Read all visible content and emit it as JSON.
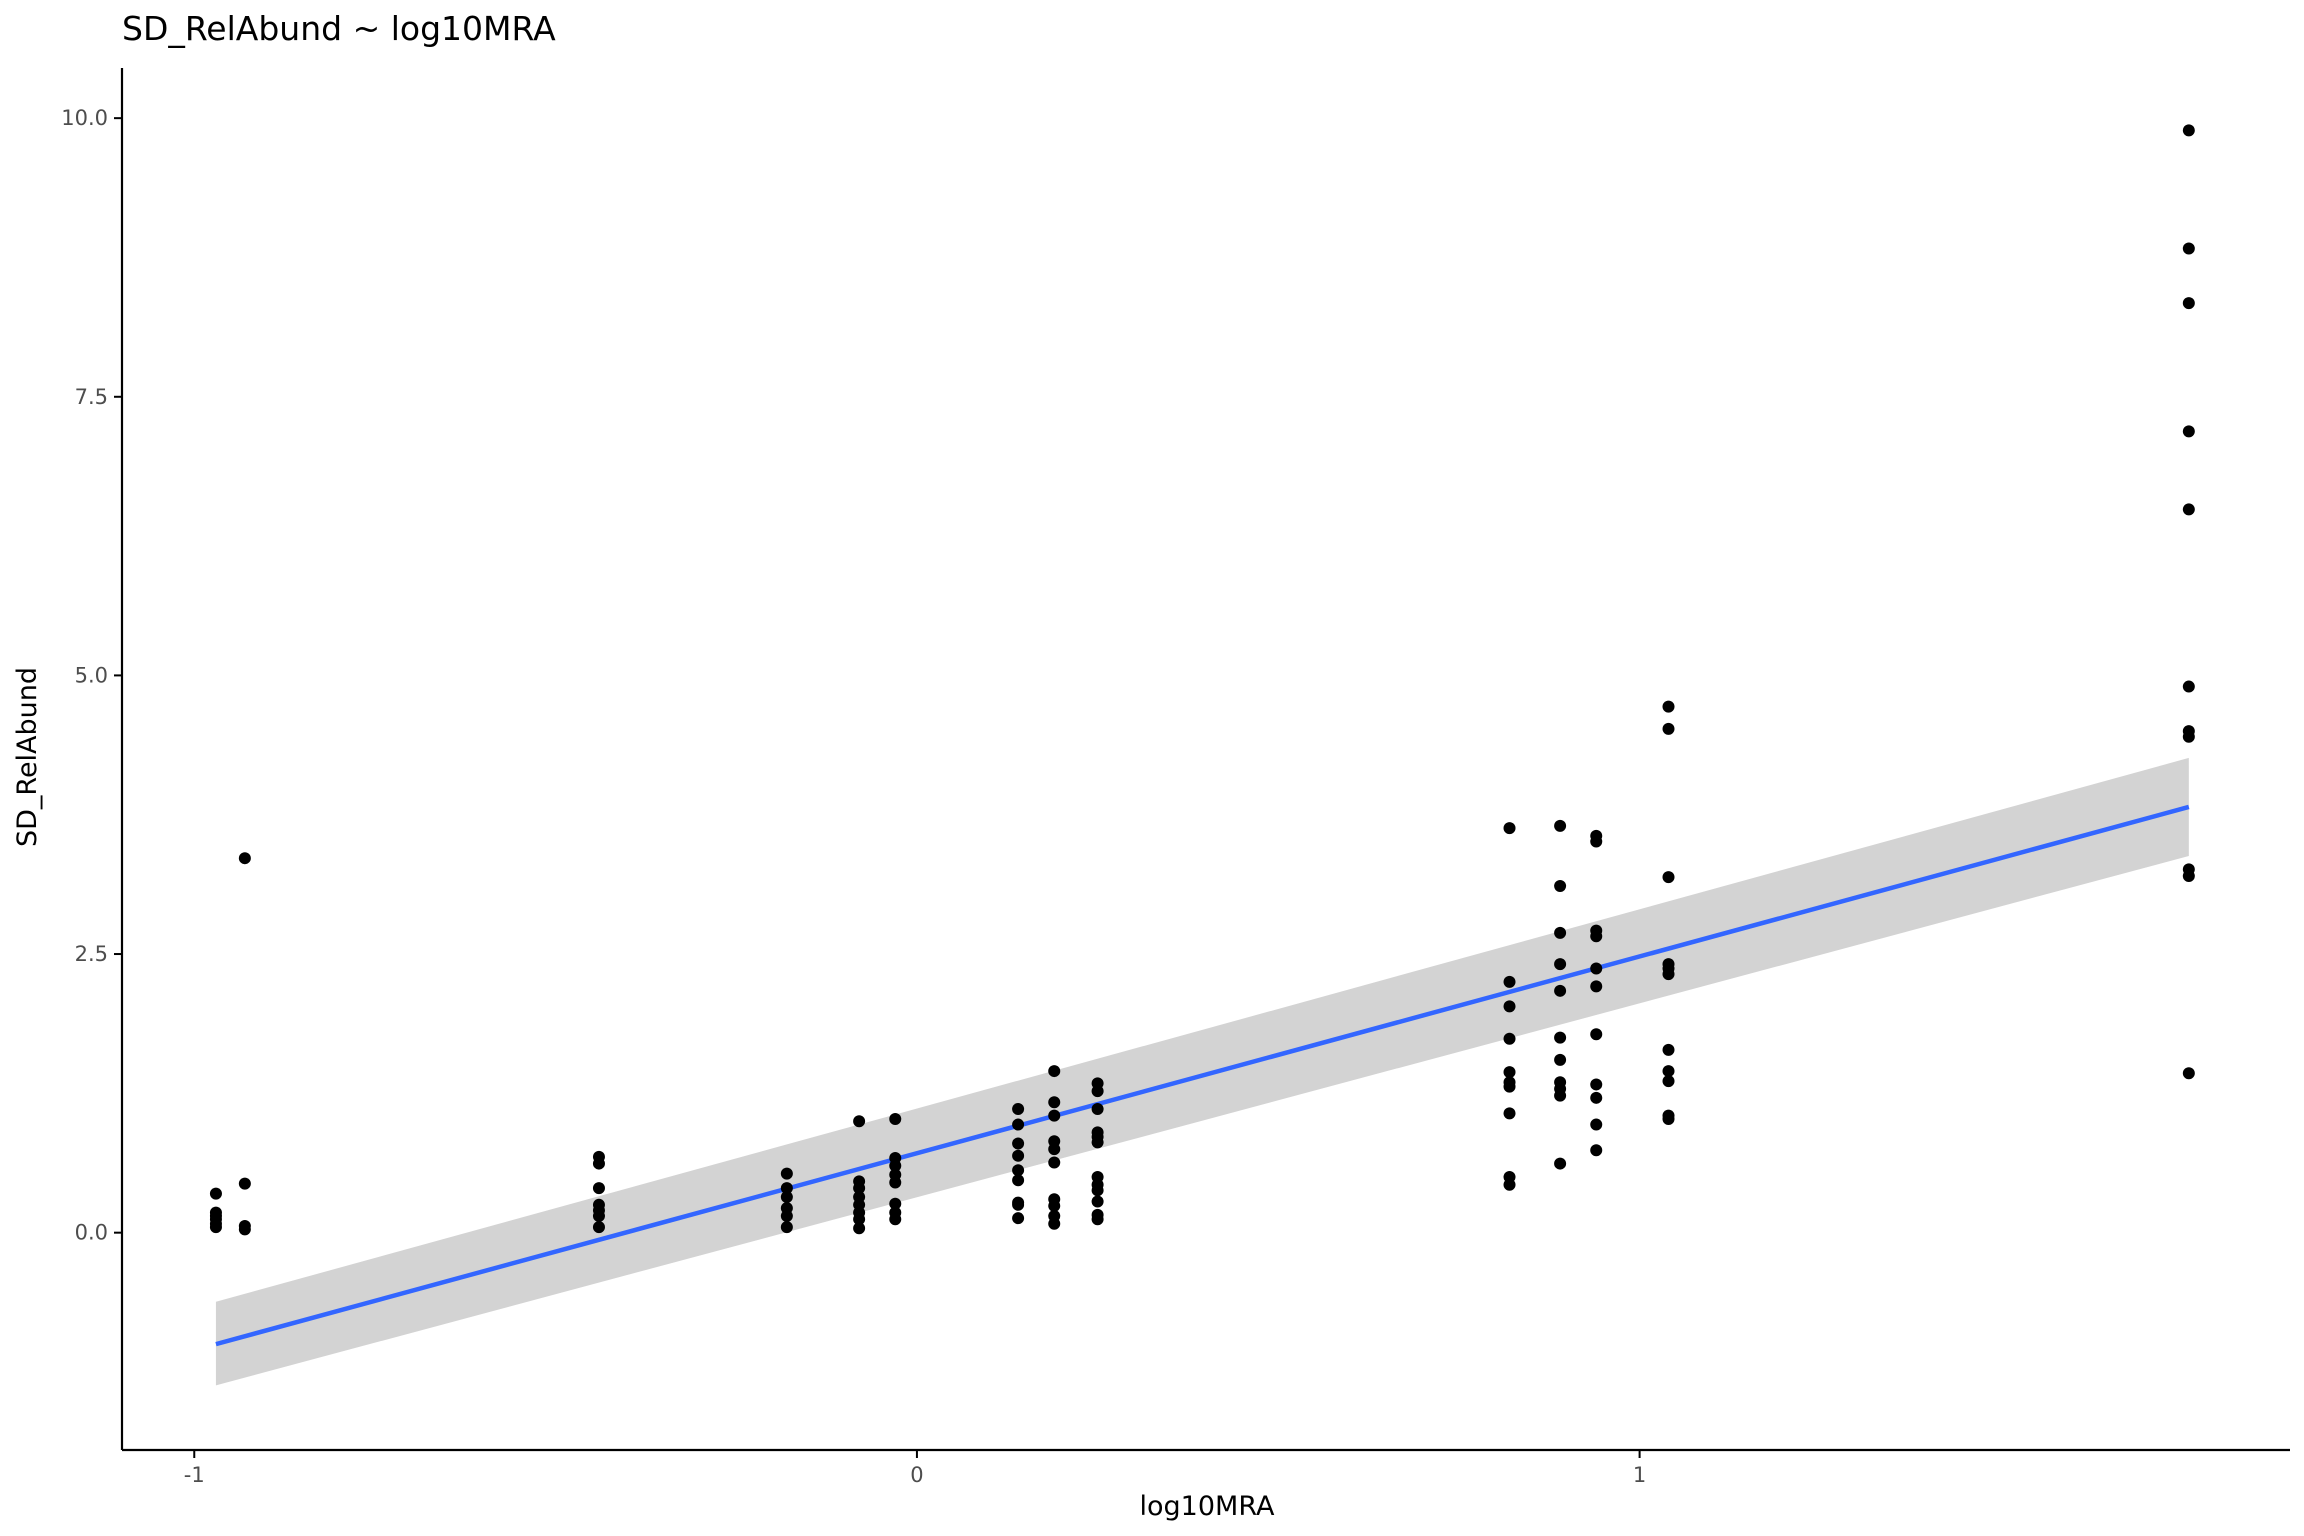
{
  "chart_data": {
    "type": "scatter",
    "title": "SD_RelAbund ~ log10MRA",
    "xlabel": "log10MRA",
    "ylabel": "SD_RelAbund",
    "xlim": [
      -1.1,
      1.9
    ],
    "ylim": [
      -1.95,
      10.45
    ],
    "x_ticks": [
      -1,
      0,
      1
    ],
    "x_tick_labels": [
      "-1",
      "0",
      "1"
    ],
    "y_ticks": [
      0,
      2.5,
      5,
      7.5,
      10
    ],
    "y_tick_labels": [
      "0.0",
      "2.5",
      "5.0",
      "7.5",
      "10.0"
    ],
    "grid": false,
    "colors": {
      "points": "#000000",
      "fit_line": "#3366ff",
      "confidence_band": "#d3d3d3",
      "axis": "#000000",
      "tick_text": "#4d4d4d"
    },
    "fit": {
      "type": "linear",
      "x": [
        -0.97,
        1.76
      ],
      "y": [
        -1.0,
        3.82
      ],
      "ci_lower": [
        -1.37,
        3.38
      ],
      "ci_upper": [
        -0.62,
        4.26
      ]
    },
    "points": [
      [
        -0.97,
        0.35
      ],
      [
        -0.97,
        0.18
      ],
      [
        -0.97,
        0.15
      ],
      [
        -0.97,
        0.12
      ],
      [
        -0.97,
        0.08
      ],
      [
        -0.97,
        0.05
      ],
      [
        -0.93,
        3.36
      ],
      [
        -0.93,
        0.44
      ],
      [
        -0.93,
        0.06
      ],
      [
        -0.93,
        0.03
      ],
      [
        -0.44,
        0.68
      ],
      [
        -0.44,
        0.62
      ],
      [
        -0.44,
        0.4
      ],
      [
        -0.44,
        0.25
      ],
      [
        -0.44,
        0.2
      ],
      [
        -0.44,
        0.15
      ],
      [
        -0.44,
        0.05
      ],
      [
        -0.18,
        0.53
      ],
      [
        -0.18,
        0.4
      ],
      [
        -0.18,
        0.32
      ],
      [
        -0.18,
        0.22
      ],
      [
        -0.18,
        0.15
      ],
      [
        -0.18,
        0.05
      ],
      [
        -0.08,
        1.0
      ],
      [
        -0.08,
        0.46
      ],
      [
        -0.08,
        0.4
      ],
      [
        -0.08,
        0.32
      ],
      [
        -0.08,
        0.25
      ],
      [
        -0.08,
        0.18
      ],
      [
        -0.08,
        0.12
      ],
      [
        -0.08,
        0.04
      ],
      [
        -0.03,
        1.02
      ],
      [
        -0.03,
        0.67
      ],
      [
        -0.03,
        0.6
      ],
      [
        -0.03,
        0.52
      ],
      [
        -0.03,
        0.45
      ],
      [
        -0.03,
        0.26
      ],
      [
        -0.03,
        0.18
      ],
      [
        -0.03,
        0.12
      ],
      [
        0.14,
        1.11
      ],
      [
        0.14,
        0.97
      ],
      [
        0.14,
        0.8
      ],
      [
        0.14,
        0.69
      ],
      [
        0.14,
        0.56
      ],
      [
        0.14,
        0.47
      ],
      [
        0.14,
        0.27
      ],
      [
        0.14,
        0.25
      ],
      [
        0.14,
        0.13
      ],
      [
        0.19,
        1.45
      ],
      [
        0.19,
        1.17
      ],
      [
        0.19,
        1.05
      ],
      [
        0.19,
        0.82
      ],
      [
        0.19,
        0.75
      ],
      [
        0.19,
        0.63
      ],
      [
        0.19,
        0.3
      ],
      [
        0.19,
        0.24
      ],
      [
        0.19,
        0.15
      ],
      [
        0.19,
        0.08
      ],
      [
        0.25,
        1.34
      ],
      [
        0.25,
        1.27
      ],
      [
        0.25,
        1.11
      ],
      [
        0.25,
        0.9
      ],
      [
        0.25,
        0.86
      ],
      [
        0.25,
        0.81
      ],
      [
        0.25,
        0.5
      ],
      [
        0.25,
        0.43
      ],
      [
        0.25,
        0.38
      ],
      [
        0.25,
        0.28
      ],
      [
        0.25,
        0.16
      ],
      [
        0.25,
        0.12
      ],
      [
        0.82,
        3.63
      ],
      [
        0.82,
        2.25
      ],
      [
        0.82,
        2.03
      ],
      [
        0.82,
        1.74
      ],
      [
        0.82,
        1.44
      ],
      [
        0.82,
        1.35
      ],
      [
        0.82,
        1.31
      ],
      [
        0.82,
        1.07
      ],
      [
        0.82,
        0.5
      ],
      [
        0.82,
        0.43
      ],
      [
        0.89,
        3.65
      ],
      [
        0.89,
        3.11
      ],
      [
        0.89,
        2.69
      ],
      [
        0.89,
        2.41
      ],
      [
        0.89,
        2.17
      ],
      [
        0.89,
        1.75
      ],
      [
        0.89,
        1.55
      ],
      [
        0.89,
        1.35
      ],
      [
        0.89,
        1.29
      ],
      [
        0.89,
        1.23
      ],
      [
        0.89,
        0.62
      ],
      [
        0.94,
        3.56
      ],
      [
        0.94,
        3.51
      ],
      [
        0.94,
        2.71
      ],
      [
        0.94,
        2.66
      ],
      [
        0.94,
        2.37
      ],
      [
        0.94,
        2.21
      ],
      [
        0.94,
        1.78
      ],
      [
        0.94,
        1.33
      ],
      [
        0.94,
        1.21
      ],
      [
        0.94,
        0.97
      ],
      [
        0.94,
        0.74
      ],
      [
        1.04,
        4.72
      ],
      [
        1.04,
        4.52
      ],
      [
        1.04,
        3.19
      ],
      [
        1.04,
        2.41
      ],
      [
        1.04,
        2.37
      ],
      [
        1.04,
        2.32
      ],
      [
        1.04,
        1.64
      ],
      [
        1.04,
        1.45
      ],
      [
        1.04,
        1.36
      ],
      [
        1.04,
        1.05
      ],
      [
        1.04,
        1.02
      ],
      [
        1.76,
        9.89
      ],
      [
        1.76,
        8.83
      ],
      [
        1.76,
        8.34
      ],
      [
        1.76,
        7.19
      ],
      [
        1.76,
        6.49
      ],
      [
        1.76,
        4.9
      ],
      [
        1.76,
        4.5
      ],
      [
        1.76,
        4.45
      ],
      [
        1.76,
        3.26
      ],
      [
        1.76,
        3.2
      ],
      [
        1.76,
        1.43
      ]
    ]
  }
}
